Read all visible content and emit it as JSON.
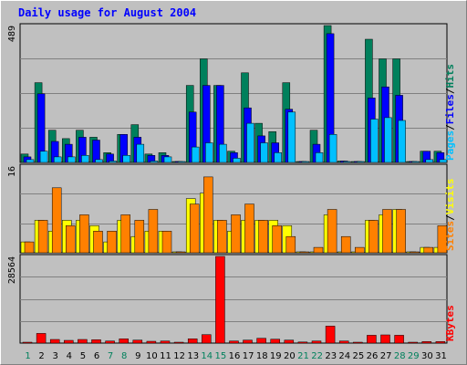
{
  "chart_data": {
    "type": "bar",
    "title": "Daily usage for August 2004",
    "categories": [
      "1",
      "2",
      "3",
      "4",
      "5",
      "6",
      "7",
      "8",
      "9",
      "10",
      "11",
      "12",
      "13",
      "14",
      "15",
      "16",
      "17",
      "18",
      "19",
      "20",
      "21",
      "22",
      "23",
      "24",
      "25",
      "26",
      "27",
      "28",
      "29",
      "30",
      "31"
    ],
    "weekend_days": [
      "1",
      "7",
      "8",
      "14",
      "15",
      "21",
      "22",
      "28",
      "29"
    ],
    "colors": {
      "hits": "#00805c",
      "files": "#0000ff",
      "pages": "#00c0ff",
      "visits": "#ffff00",
      "sites": "#ff8000",
      "kbytes": "#ff0000",
      "weekday_label": "#000000",
      "weekend_label": "#00805c",
      "title": "#0000ff"
    },
    "panels": [
      {
        "id": "hits",
        "ymax_label": "489",
        "ylim": [
          0,
          489
        ],
        "label_parts": [
          {
            "text": "Pages",
            "color": "#00c0ff"
          },
          {
            "text": "/",
            "color": "#000000"
          },
          {
            "text": "Files",
            "color": "#0000ff"
          },
          {
            "text": "/",
            "color": "#000000"
          },
          {
            "text": "Hits",
            "color": "#00805c"
          }
        ],
        "series": [
          {
            "name": "Hits",
            "values": [
              30,
              285,
              115,
              85,
              115,
              90,
              35,
              100,
              135,
              30,
              35,
              0,
              275,
              370,
              275,
              40,
              320,
              140,
              110,
              285,
              0,
              115,
              489,
              5,
              0,
              440,
              370,
              370,
              0,
              40,
              40
            ]
          },
          {
            "name": "Files",
            "values": [
              20,
              245,
              75,
              65,
              90,
              80,
              30,
              100,
              90,
              25,
              25,
              0,
              180,
              275,
              275,
              35,
              195,
              95,
              70,
              190,
              0,
              65,
              460,
              5,
              0,
              230,
              270,
              240,
              0,
              40,
              35
            ]
          },
          {
            "name": "Pages",
            "values": [
              10,
              40,
              20,
              20,
              25,
              10,
              5,
              25,
              65,
              5,
              20,
              0,
              55,
              70,
              65,
              15,
              140,
              70,
              35,
              180,
              0,
              35,
              100,
              0,
              0,
              155,
              160,
              150,
              0,
              10,
              10
            ]
          }
        ]
      },
      {
        "id": "visits",
        "ymax_label": "16",
        "ylim": [
          0,
          16
        ],
        "label_parts": [
          {
            "text": "Sites",
            "color": "#ff8000"
          },
          {
            "text": "/",
            "color": "#000000"
          },
          {
            "text": "Visits",
            "color": "#ffff00"
          }
        ],
        "series": [
          {
            "name": "Visits",
            "values": [
              2,
              6,
              4,
              6,
              6,
              5,
              2,
              6,
              3,
              4,
              4,
              0,
              10,
              11,
              6,
              4,
              6,
              6,
              6,
              5,
              0,
              0,
              7,
              0,
              0,
              6,
              7,
              8,
              0,
              1,
              1
            ]
          },
          {
            "name": "Sites",
            "values": [
              2,
              6,
              12,
              5,
              7,
              4,
              4,
              7,
              6,
              8,
              4,
              0,
              9,
              14,
              6,
              7,
              9,
              6,
              5,
              3,
              0,
              1,
              8,
              3,
              1,
              6,
              8,
              8,
              0,
              1,
              5
            ]
          }
        ]
      },
      {
        "id": "kbytes",
        "ymax_label": "28564",
        "ylim": [
          0,
          28564
        ],
        "label_parts": [
          {
            "text": "KBytes",
            "color": "#ff0000"
          }
        ],
        "series": [
          {
            "name": "KBytes",
            "values": [
              150,
              3200,
              1200,
              900,
              1200,
              1100,
              700,
              1400,
              1000,
              600,
              700,
              300,
              1400,
              2800,
              28564,
              700,
              1000,
              1600,
              1300,
              1000,
              350,
              700,
              5600,
              700,
              300,
              2600,
              2700,
              2600,
              300,
              500,
              500
            ]
          }
        ]
      }
    ]
  }
}
